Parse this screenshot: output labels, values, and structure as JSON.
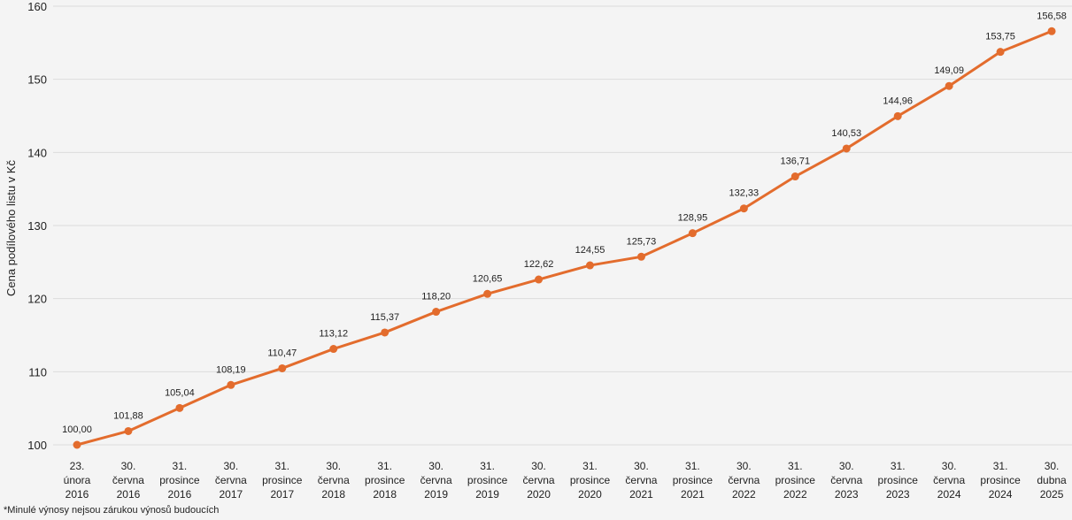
{
  "chart_data": {
    "type": "line",
    "ylabel": "Cena podílového listu v Kč",
    "ylim": [
      100,
      160
    ],
    "yticks": [
      100,
      110,
      120,
      130,
      140,
      150,
      160
    ],
    "grid": true,
    "line_color": "#e36c2d",
    "categories": [
      [
        "23.",
        "února",
        "2016"
      ],
      [
        "30.",
        "června",
        "2016"
      ],
      [
        "31.",
        "prosince",
        "2016"
      ],
      [
        "30.",
        "června",
        "2017"
      ],
      [
        "31.",
        "prosince",
        "2017"
      ],
      [
        "30.",
        "června",
        "2018"
      ],
      [
        "31.",
        "prosince",
        "2018"
      ],
      [
        "30.",
        "června",
        "2019"
      ],
      [
        "31.",
        "prosince",
        "2019"
      ],
      [
        "30.",
        "června",
        "2020"
      ],
      [
        "31.",
        "prosince",
        "2020"
      ],
      [
        "30.",
        "června",
        "2021"
      ],
      [
        "31.",
        "prosince",
        "2021"
      ],
      [
        "30.",
        "června",
        "2022"
      ],
      [
        "31.",
        "prosince",
        "2022"
      ],
      [
        "30.",
        "června",
        "2023"
      ],
      [
        "31.",
        "prosince",
        "2023"
      ],
      [
        "30.",
        "června",
        "2024"
      ],
      [
        "31.",
        "prosince",
        "2024"
      ],
      [
        "30.",
        "dubna",
        "2025"
      ]
    ],
    "values": [
      100.0,
      101.88,
      105.04,
      108.19,
      110.47,
      113.12,
      115.37,
      118.2,
      120.65,
      122.62,
      124.55,
      125.73,
      128.95,
      132.33,
      136.71,
      140.53,
      144.96,
      149.09,
      153.75,
      156.58
    ],
    "data_labels": [
      "100,00",
      "101,88",
      "105,04",
      "108,19",
      "110,47",
      "113,12",
      "115,37",
      "118,20",
      "120,65",
      "122,62",
      "124,55",
      "125,73",
      "128,95",
      "132,33",
      "136,71",
      "140,53",
      "144,96",
      "149,09",
      "153,75",
      "156,58"
    ]
  },
  "footnote": "*Minulé výnosy nejsou zárukou výnosů budoucích"
}
